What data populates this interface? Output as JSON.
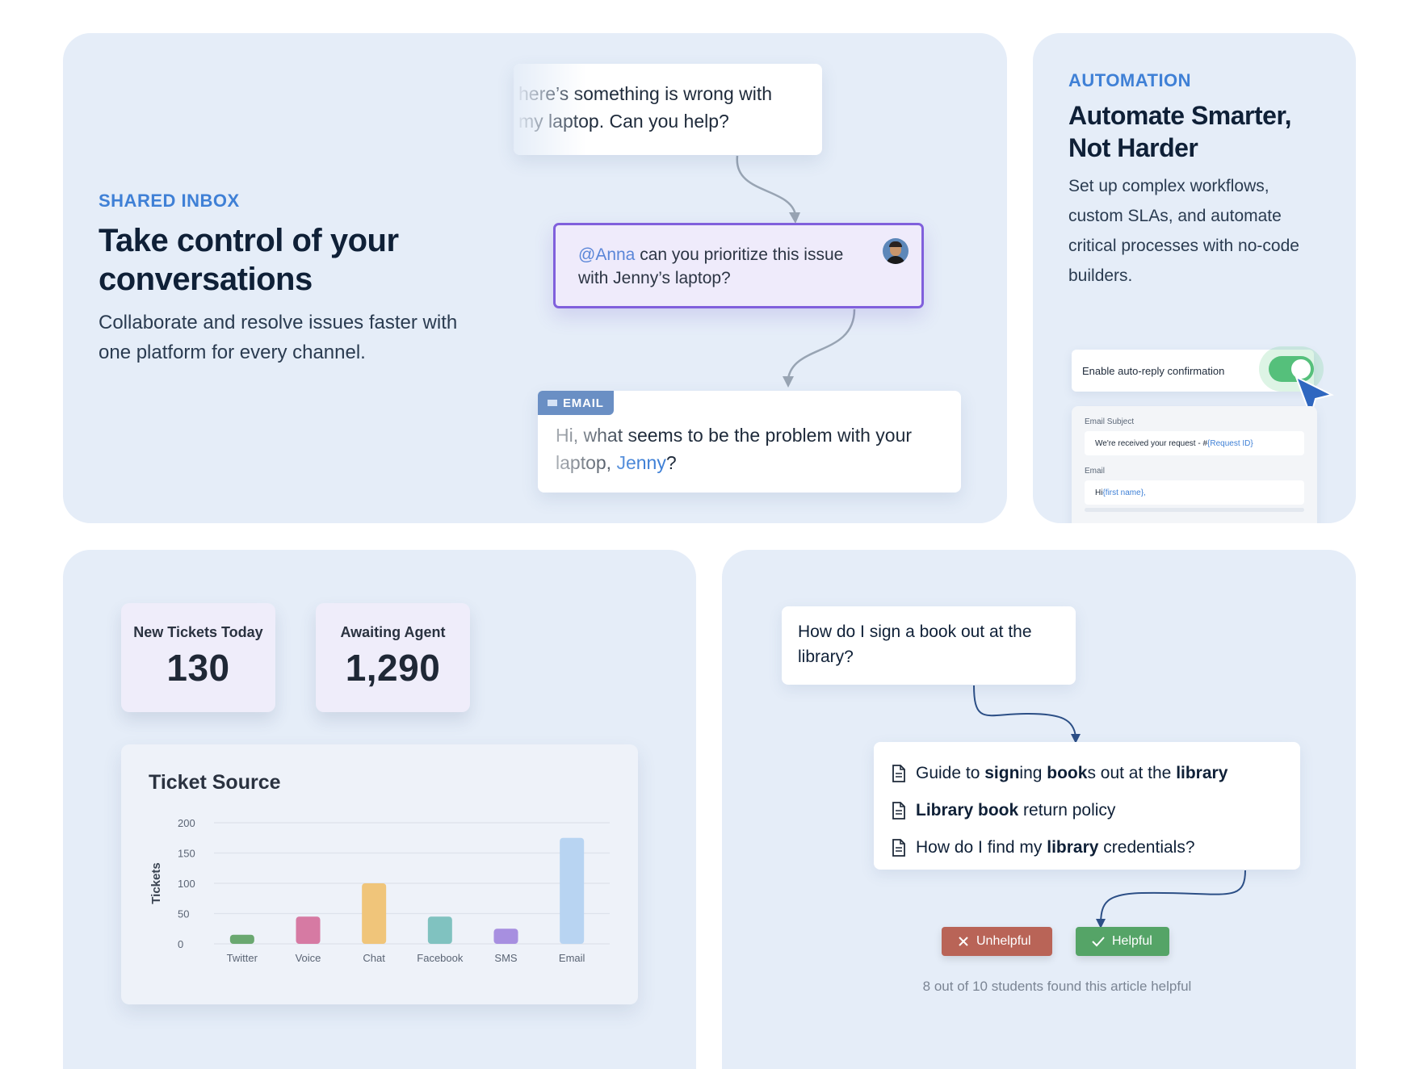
{
  "inbox": {
    "eyebrow": "SHARED INBOX",
    "headline": "Take control of your conversations",
    "body": "Collaborate and resolve issues faster with one platform for every channel.",
    "customer_message": "here’s something is wrong with my laptop. Can you help?",
    "note_mention": "@Anna",
    "note_text": " can you prioritize this issue with Jenny’s laptop?",
    "email_tag": "EMAIL",
    "email_text": "Hi, what seems to be the problem with your laptop, ",
    "email_name": "Jenny",
    "email_end": "?"
  },
  "automation": {
    "eyebrow": "AUTOMATION",
    "headline": "Automate Smarter, Not Harder",
    "body": "Set up complex workflows, custom SLAs, and automate critical processes with no-code builders.",
    "toggle_label": "Enable auto-reply confirmation",
    "toggle_on": true,
    "subject_label": "Email Subject",
    "subject_value": "We're received your request - #",
    "subject_var": "{Request ID}",
    "email_label": "Email",
    "email_value": "Hi ",
    "email_var": "{first name},"
  },
  "metrics": {
    "new_label": "New Tickets Today",
    "new_value": "130",
    "await_label": "Awaiting Agent",
    "await_value": "1,290"
  },
  "chart_data": {
    "type": "bar",
    "title": "Ticket Source",
    "ylabel": "Tickets",
    "xlabel": "",
    "categories": [
      "Twitter",
      "Voice",
      "Chat",
      "Facebook",
      "SMS",
      "Email"
    ],
    "values": [
      15,
      45,
      100,
      45,
      25,
      175
    ],
    "colors": [
      "#6aa870",
      "#d67aa3",
      "#f0c57a",
      "#80c2c0",
      "#a78fe0",
      "#b8d4f2"
    ],
    "yticks": [
      0,
      50,
      100,
      150,
      200
    ],
    "ylim": [
      0,
      200
    ],
    "grid": true
  },
  "kb": {
    "question": "How do I sign a book out at the library?",
    "results": [
      [
        {
          "t": "Guide to ",
          "b": false
        },
        {
          "t": "sign",
          "b": true
        },
        {
          "t": "ing ",
          "b": false
        },
        {
          "t": "book",
          "b": true
        },
        {
          "t": "s out at the ",
          "b": false
        },
        {
          "t": "library",
          "b": true
        }
      ],
      [
        {
          "t": "Library book",
          "b": true
        },
        {
          "t": " return policy",
          "b": false
        }
      ],
      [
        {
          "t": "How do I find my ",
          "b": false
        },
        {
          "t": "library",
          "b": true
        },
        {
          "t": " credentials?",
          "b": false
        }
      ]
    ],
    "unhelpful_label": "Unhelpful",
    "helpful_label": "Helpful",
    "caption": "8 out of 10 students found this article helpful"
  }
}
